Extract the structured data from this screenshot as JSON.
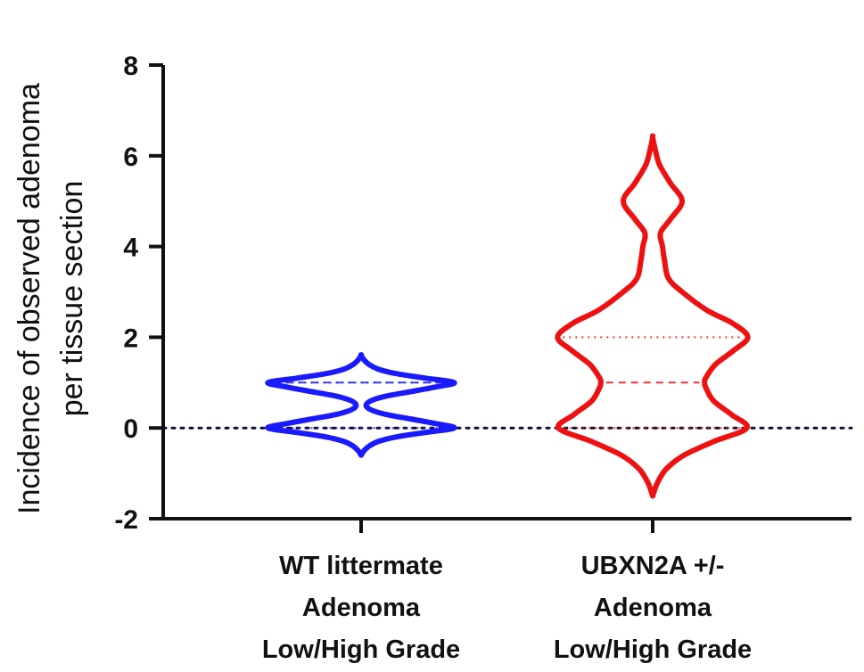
{
  "chart_data": {
    "type": "violin",
    "ylabel": [
      "Incidence of observed adenoma",
      "per tissue section"
    ],
    "ylim": [
      -2,
      8
    ],
    "yticks": [
      -2,
      0,
      2,
      4,
      6,
      8
    ],
    "ytick_labels": [
      "-2",
      "0",
      "2",
      "4",
      "6",
      "8"
    ],
    "reference_line": {
      "y": 0,
      "style": "dotted",
      "color": "#111133"
    },
    "categories": [
      {
        "name": "WT littermate Adenoma Low/High Grade",
        "lines": [
          "WT littermate",
          "Adenoma",
          "Low/High Grade"
        ]
      },
      {
        "name": "UBXN2A +/- Adenoma Low/High Grade",
        "lines": [
          "UBXN2A +/-",
          "Adenoma",
          "Low/High Grade"
        ]
      }
    ],
    "series": [
      {
        "category": "WT littermate Adenoma Low/High Grade",
        "color": "#1a1aff",
        "min": -0.6,
        "max": 1.6,
        "q1": 0,
        "median": 1,
        "q3": 1,
        "density": [
          [
            -0.6,
            0
          ],
          [
            -0.5,
            0.03
          ],
          [
            -0.4,
            0.08
          ],
          [
            -0.3,
            0.17
          ],
          [
            -0.2,
            0.35
          ],
          [
            -0.1,
            0.65
          ],
          [
            0,
            0.95
          ],
          [
            0.1,
            0.75
          ],
          [
            0.2,
            0.5
          ],
          [
            0.3,
            0.25
          ],
          [
            0.4,
            0.1
          ],
          [
            0.5,
            0.05
          ],
          [
            0.6,
            0.1
          ],
          [
            0.7,
            0.25
          ],
          [
            0.8,
            0.5
          ],
          [
            0.9,
            0.75
          ],
          [
            1.0,
            0.95
          ],
          [
            1.1,
            0.65
          ],
          [
            1.2,
            0.35
          ],
          [
            1.3,
            0.17
          ],
          [
            1.4,
            0.08
          ],
          [
            1.5,
            0.03
          ],
          [
            1.6,
            0
          ]
        ]
      },
      {
        "category": "UBXN2A +/- Adenoma Low/High Grade",
        "color": "#ee1111",
        "min": -1.5,
        "max": 6.4,
        "q1": 0,
        "median": 1,
        "q3": 2,
        "density": [
          [
            -1.5,
            0
          ],
          [
            -1.2,
            0.05
          ],
          [
            -0.9,
            0.14
          ],
          [
            -0.6,
            0.32
          ],
          [
            -0.3,
            0.62
          ],
          [
            0,
            0.96
          ],
          [
            0.3,
            0.8
          ],
          [
            0.6,
            0.62
          ],
          [
            0.9,
            0.54
          ],
          [
            1.0,
            0.53
          ],
          [
            1.1,
            0.54
          ],
          [
            1.4,
            0.64
          ],
          [
            1.7,
            0.82
          ],
          [
            2.0,
            0.97
          ],
          [
            2.3,
            0.82
          ],
          [
            2.6,
            0.55
          ],
          [
            3.0,
            0.3
          ],
          [
            3.3,
            0.16
          ],
          [
            3.7,
            0.12
          ],
          [
            4.0,
            0.1
          ],
          [
            4.3,
            0.08
          ],
          [
            4.6,
            0.18
          ],
          [
            5.0,
            0.3
          ],
          [
            5.4,
            0.18
          ],
          [
            5.8,
            0.07
          ],
          [
            6.1,
            0.03
          ],
          [
            6.4,
            0
          ]
        ]
      }
    ]
  }
}
